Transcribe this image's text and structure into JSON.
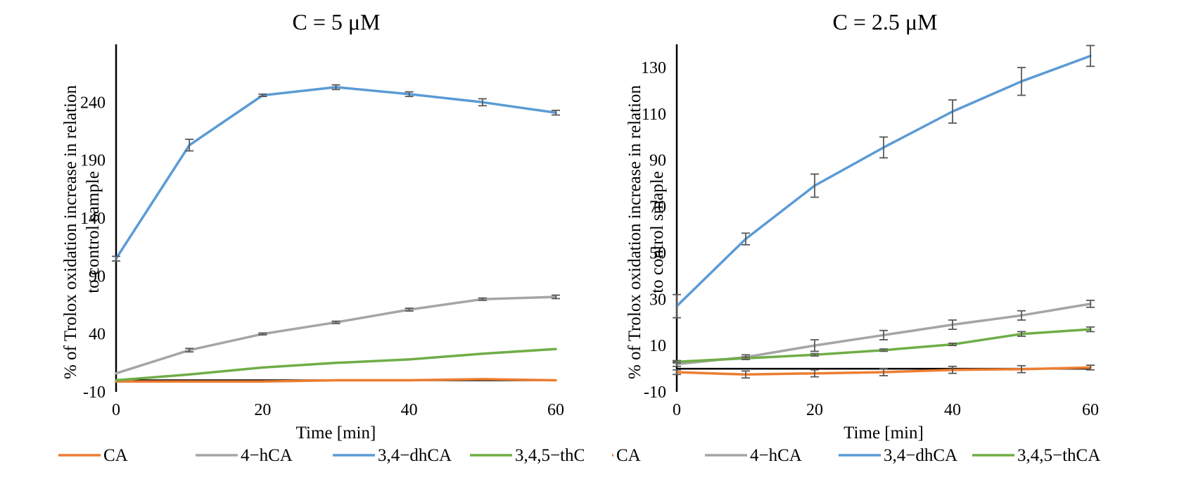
{
  "colors": {
    "CA": "#ED7D31",
    "4−hCA": "#A5A5A5",
    "3,4−dhCA": "#5B9BD5",
    "3,4,5−thCA": "#70AD47",
    "error_bar": "#595959"
  },
  "chart_data": [
    {
      "type": "line",
      "title": "C = 5 μM",
      "xlabel": "Time [min]",
      "ylabel_line1": "% of Trolox oxidation increase in relation",
      "ylabel_line2": "to control sample",
      "x": [
        0,
        10,
        20,
        30,
        40,
        50,
        60
      ],
      "x_ticks": [
        "0",
        "20",
        "40",
        "60"
      ],
      "xlim": [
        0,
        60
      ],
      "ylim": [
        -10,
        290
      ],
      "y_ticks": [
        "-10",
        "40",
        "90",
        "140",
        "190",
        "240"
      ],
      "y_tick_values": [
        -10,
        40,
        90,
        140,
        190,
        240
      ],
      "legend_position": "bottom",
      "series": [
        {
          "name": "CA",
          "values": [
            -1,
            -1,
            -1,
            0,
            0,
            1,
            0
          ],
          "errors": [
            0,
            0,
            0,
            0,
            0,
            0,
            0
          ]
        },
        {
          "name": "4−hCA",
          "values": [
            6,
            26,
            40,
            50,
            61,
            70,
            72
          ],
          "errors": [
            0,
            1.5,
            0.8,
            1,
            1.2,
            1,
            1.5
          ]
        },
        {
          "name": "3,4−dhCA",
          "values": [
            105,
            203,
            246,
            253,
            247,
            240,
            231
          ],
          "errors": [
            2,
            5,
            1,
            2,
            2,
            3,
            2
          ]
        },
        {
          "name": "3,4,5−thCA",
          "values": [
            0,
            5,
            11,
            15,
            18,
            23,
            27
          ],
          "errors": [
            0,
            0,
            0,
            0,
            0,
            0,
            0
          ]
        }
      ]
    },
    {
      "type": "line",
      "title": "C = 2.5 μM",
      "xlabel": "Time [min]",
      "ylabel_line1": "% of Trolox oxidation increase in relation",
      "ylabel_line2": "to control smaple",
      "x": [
        0,
        10,
        20,
        30,
        40,
        50,
        60
      ],
      "x_ticks": [
        "0",
        "20",
        "40",
        "60"
      ],
      "xlim": [
        0,
        60
      ],
      "ylim": [
        -10,
        140
      ],
      "y_ticks": [
        "-10",
        "10",
        "30",
        "50",
        "70",
        "90",
        "110",
        "130"
      ],
      "y_tick_values": [
        -10,
        10,
        30,
        50,
        70,
        90,
        110,
        130
      ],
      "legend_position": "bottom",
      "series": [
        {
          "name": "CA",
          "values": [
            -1.5,
            -2.5,
            -2,
            -1.5,
            -0.5,
            -0.2,
            0.5
          ],
          "errors": [
            1,
            1.5,
            1.5,
            1.5,
            1.5,
            1.5,
            1
          ]
        },
        {
          "name": "4−hCA",
          "values": [
            2,
            5,
            10,
            14.5,
            19,
            23,
            28
          ],
          "errors": [
            1,
            1,
            2.5,
            2,
            2,
            2,
            1.5
          ]
        },
        {
          "name": "3,4−dhCA",
          "values": [
            27,
            56,
            79,
            95.5,
            111,
            124,
            135
          ],
          "errors": [
            5,
            2.5,
            5,
            4.5,
            5,
            6,
            4.5
          ]
        },
        {
          "name": "3,4,5−thCA",
          "values": [
            3,
            4.5,
            6,
            8,
            10.5,
            15,
            17
          ],
          "errors": [
            0.5,
            0.5,
            0.5,
            0.5,
            0.5,
            1,
            1
          ]
        }
      ]
    }
  ]
}
